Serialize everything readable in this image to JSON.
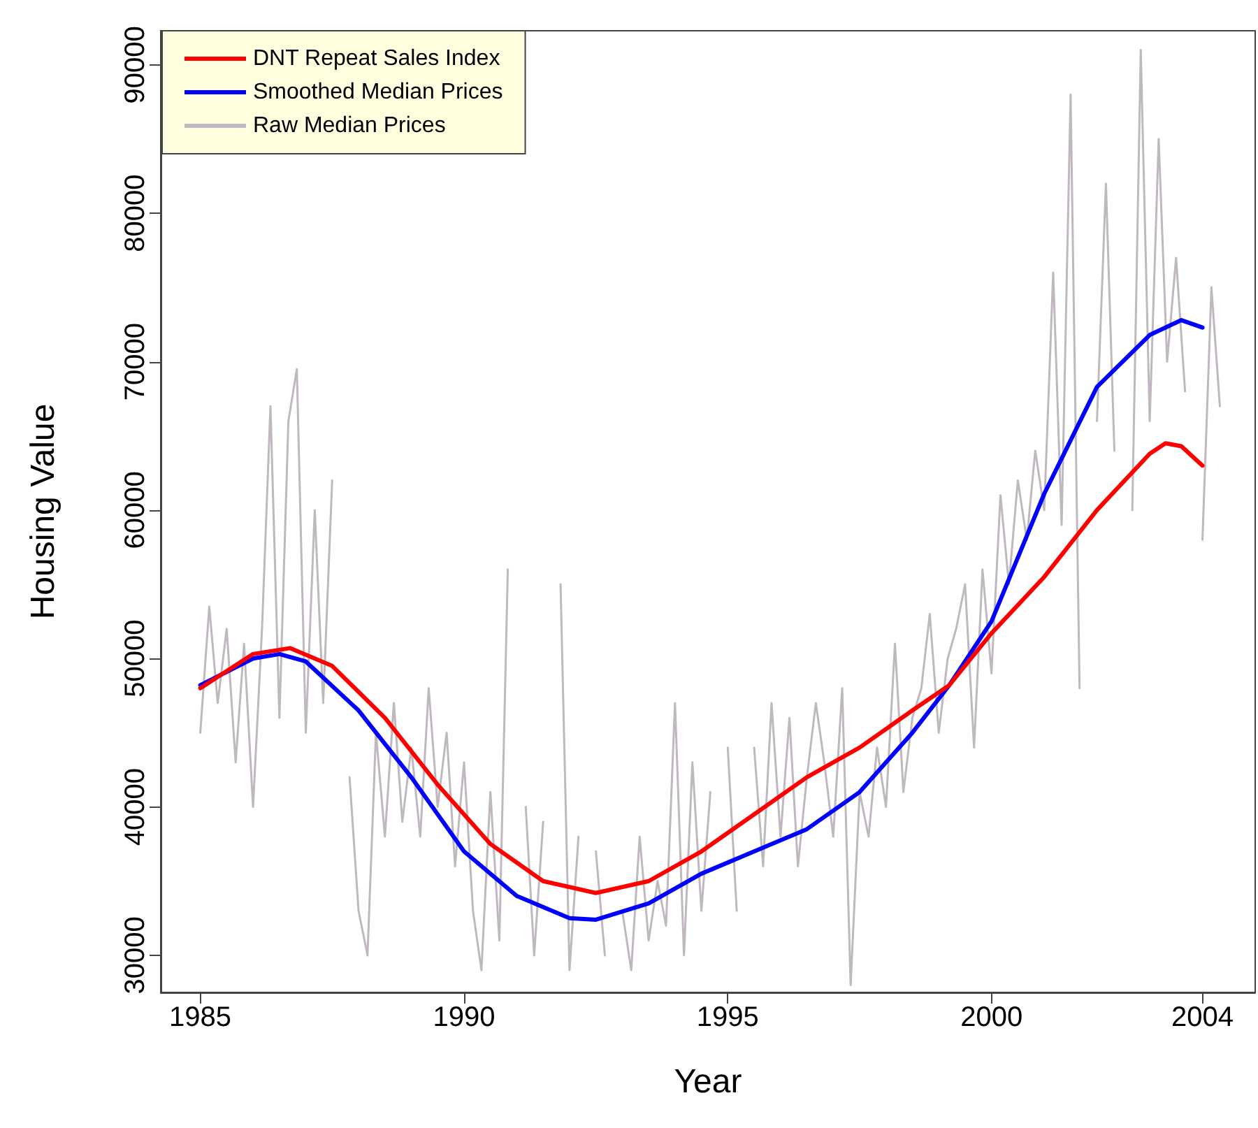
{
  "chart_data": {
    "type": "line",
    "xlabel": "Year",
    "ylabel": "Housing Value",
    "xlim": [
      1984.25,
      2005
    ],
    "xticks": [
      1985,
      1990,
      1995,
      2000,
      2004
    ],
    "ylim": [
      27500,
      92300
    ],
    "yticks": [
      30000,
      40000,
      50000,
      60000,
      70000,
      80000,
      90000
    ],
    "grid": false,
    "legend": "top left",
    "marker": "none",
    "line_style": "solid",
    "series": [
      {
        "name": "DNT Repeat Sales Index",
        "color": "#ff0000",
        "x": [
          1985,
          1986,
          1986.7,
          1987.5,
          1988.5,
          1989.5,
          1990.5,
          1991.5,
          1992.5,
          1993.5,
          1994.5,
          1995.5,
          1996.5,
          1997.5,
          1998.5,
          1999.2,
          2000,
          2001,
          2002,
          2003,
          2003.3,
          2003.6,
          2004
        ],
        "values": [
          48000,
          50300,
          50700,
          49500,
          46000,
          41500,
          37500,
          35000,
          34200,
          35000,
          37000,
          39500,
          42000,
          44000,
          46500,
          48200,
          51700,
          55500,
          60000,
          63800,
          64500,
          64300,
          63000
        ]
      },
      {
        "name": "Smoothed Median Prices",
        "color": "#0000ff",
        "x": [
          1985,
          1986,
          1986.5,
          1987,
          1988,
          1989,
          1990,
          1991,
          1992,
          1992.5,
          1993.5,
          1994.5,
          1995.5,
          1996.5,
          1997.5,
          1998.5,
          1999.2,
          2000,
          2001,
          2002,
          2003,
          2003.6,
          2004
        ],
        "values": [
          48200,
          50000,
          50300,
          49800,
          46500,
          42000,
          37000,
          34000,
          32500,
          32400,
          33500,
          35500,
          37000,
          38500,
          41000,
          45000,
          48200,
          52500,
          61100,
          68300,
          71800,
          72800,
          72300
        ]
      },
      {
        "name": "Raw Median Prices",
        "color": "#c0b8c0",
        "x": [
          1985,
          1985.17,
          1985.33,
          1985.5,
          1985.67,
          1985.83,
          1986,
          1986.17,
          1986.33,
          1986.5,
          1986.67,
          1986.83,
          1987,
          1987.17,
          1987.33,
          1987.5,
          1987.67,
          1987.83,
          1988,
          1988.17,
          1988.33,
          1988.5,
          1988.67,
          1988.83,
          1989,
          1989.17,
          1989.33,
          1989.5,
          1989.67,
          1989.83,
          1990,
          1990.17,
          1990.33,
          1990.5,
          1990.67,
          1990.83,
          1991,
          1991.17,
          1991.33,
          1991.5,
          1991.67,
          1991.83,
          1992,
          1992.17,
          1992.33,
          1992.5,
          1992.67,
          1992.83,
          1993,
          1993.17,
          1993.33,
          1993.5,
          1993.67,
          1993.83,
          1994,
          1994.17,
          1994.33,
          1994.5,
          1994.67,
          1994.83,
          1995,
          1995.17,
          1995.33,
          1995.5,
          1995.67,
          1995.83,
          1996,
          1996.17,
          1996.33,
          1996.5,
          1996.67,
          1996.83,
          1997,
          1997.17,
          1997.33,
          1997.5,
          1997.67,
          1997.83,
          1998,
          1998.17,
          1998.33,
          1998.5,
          1998.67,
          1998.83,
          1999,
          1999.17,
          1999.33,
          1999.5,
          1999.67,
          1999.83,
          2000,
          2000.17,
          2000.33,
          2000.5,
          2000.67,
          2000.83,
          2001,
          2001.17,
          2001.33,
          2001.5,
          2001.67,
          2001.83,
          2002,
          2002.17,
          2002.33,
          2002.5,
          2002.67,
          2002.83,
          2003,
          2003.17,
          2003.33,
          2003.5,
          2003.67,
          2003.83,
          2004,
          2004.17,
          2004.33
        ],
        "values": [
          45000,
          53500,
          47000,
          52000,
          43000,
          51000,
          40000,
          52000,
          67000,
          46000,
          66000,
          69500,
          45000,
          60000,
          47000,
          62000,
          null,
          42000,
          33000,
          30000,
          45000,
          38000,
          47000,
          39000,
          44000,
          38000,
          48000,
          40000,
          45000,
          36000,
          43000,
          33000,
          29000,
          41000,
          31000,
          56000,
          null,
          40000,
          30000,
          39000,
          null,
          55000,
          29000,
          38000,
          null,
          37000,
          30000,
          null,
          33000,
          29000,
          38000,
          31000,
          35000,
          32000,
          47000,
          30000,
          43000,
          33000,
          41000,
          null,
          44000,
          33000,
          null,
          44000,
          36000,
          47000,
          38000,
          46000,
          36000,
          42000,
          47000,
          43000,
          38000,
          48000,
          28000,
          41000,
          38000,
          44000,
          40000,
          51000,
          41000,
          46000,
          48000,
          53000,
          45000,
          50000,
          52000,
          55000,
          44000,
          56000,
          49000,
          61000,
          55000,
          62000,
          58000,
          64000,
          60000,
          76000,
          59000,
          88000,
          48000,
          null,
          66000,
          82000,
          64000,
          null,
          60000,
          91000,
          66000,
          85000,
          70000,
          77000,
          68000,
          null,
          58000,
          75000,
          67000
        ]
      }
    ]
  }
}
